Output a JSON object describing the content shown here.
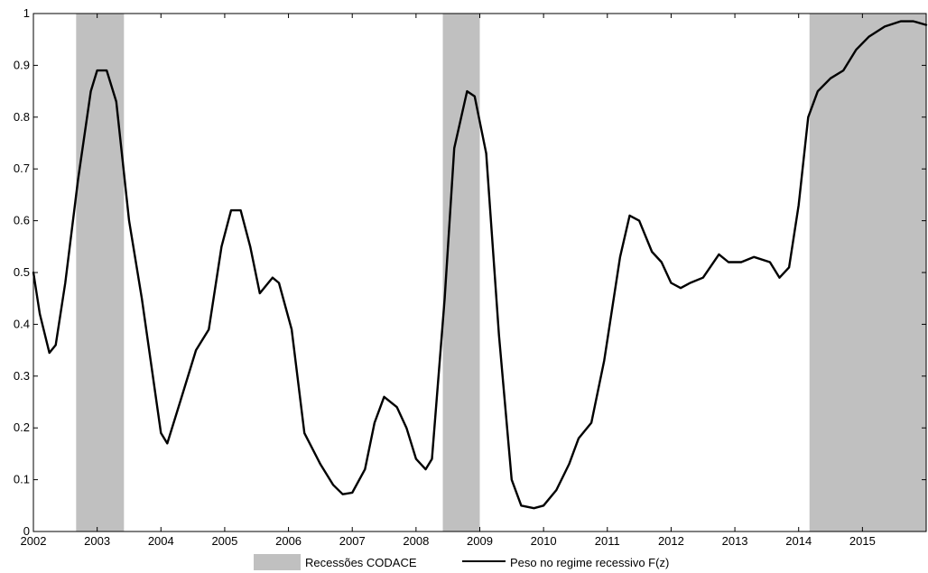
{
  "chart_data": {
    "type": "line",
    "title": "",
    "xlabel": "",
    "ylabel": "",
    "xlim": [
      2002,
      2016
    ],
    "ylim": [
      0,
      1
    ],
    "grid": false,
    "legend_placement": "bottom",
    "x_ticks": [
      "2002",
      "2003",
      "2004",
      "2005",
      "2006",
      "2007",
      "2008",
      "2009",
      "2010",
      "2011",
      "2012",
      "2013",
      "2014",
      "2015"
    ],
    "y_ticks": [
      "0",
      "0.1",
      "0.2",
      "0.3",
      "0.4",
      "0.5",
      "0.6",
      "0.7",
      "0.8",
      "0.9",
      "1"
    ],
    "recession_periods": [
      [
        2002.67,
        2003.42
      ],
      [
        2008.42,
        2009.0
      ],
      [
        2014.17,
        2016.0
      ]
    ],
    "series": [
      {
        "name": "Peso no regime recessivo F(z)",
        "color": "#000000",
        "points": [
          [
            2002.0,
            0.5
          ],
          [
            2002.1,
            0.42
          ],
          [
            2002.25,
            0.345
          ],
          [
            2002.35,
            0.36
          ],
          [
            2002.5,
            0.48
          ],
          [
            2002.7,
            0.68
          ],
          [
            2002.9,
            0.85
          ],
          [
            2003.0,
            0.89
          ],
          [
            2003.15,
            0.89
          ],
          [
            2003.3,
            0.83
          ],
          [
            2003.5,
            0.6
          ],
          [
            2003.7,
            0.45
          ],
          [
            2003.85,
            0.32
          ],
          [
            2004.0,
            0.19
          ],
          [
            2004.1,
            0.17
          ],
          [
            2004.3,
            0.25
          ],
          [
            2004.55,
            0.35
          ],
          [
            2004.75,
            0.39
          ],
          [
            2004.95,
            0.55
          ],
          [
            2005.1,
            0.62
          ],
          [
            2005.25,
            0.62
          ],
          [
            2005.4,
            0.55
          ],
          [
            2005.55,
            0.46
          ],
          [
            2005.75,
            0.49
          ],
          [
            2005.85,
            0.48
          ],
          [
            2006.05,
            0.39
          ],
          [
            2006.25,
            0.19
          ],
          [
            2006.5,
            0.13
          ],
          [
            2006.7,
            0.09
          ],
          [
            2006.85,
            0.072
          ],
          [
            2007.0,
            0.075
          ],
          [
            2007.2,
            0.12
          ],
          [
            2007.35,
            0.21
          ],
          [
            2007.5,
            0.26
          ],
          [
            2007.7,
            0.24
          ],
          [
            2007.85,
            0.2
          ],
          [
            2008.0,
            0.14
          ],
          [
            2008.15,
            0.12
          ],
          [
            2008.25,
            0.14
          ],
          [
            2008.45,
            0.45
          ],
          [
            2008.6,
            0.74
          ],
          [
            2008.8,
            0.85
          ],
          [
            2008.92,
            0.84
          ],
          [
            2009.1,
            0.73
          ],
          [
            2009.3,
            0.38
          ],
          [
            2009.5,
            0.1
          ],
          [
            2009.65,
            0.05
          ],
          [
            2009.85,
            0.045
          ],
          [
            2010.0,
            0.05
          ],
          [
            2010.2,
            0.08
          ],
          [
            2010.4,
            0.13
          ],
          [
            2010.55,
            0.18
          ],
          [
            2010.75,
            0.21
          ],
          [
            2010.95,
            0.33
          ],
          [
            2011.2,
            0.53
          ],
          [
            2011.35,
            0.61
          ],
          [
            2011.5,
            0.6
          ],
          [
            2011.7,
            0.54
          ],
          [
            2011.85,
            0.52
          ],
          [
            2012.0,
            0.48
          ],
          [
            2012.15,
            0.47
          ],
          [
            2012.3,
            0.48
          ],
          [
            2012.5,
            0.49
          ],
          [
            2012.75,
            0.535
          ],
          [
            2012.9,
            0.52
          ],
          [
            2013.1,
            0.52
          ],
          [
            2013.3,
            0.53
          ],
          [
            2013.55,
            0.52
          ],
          [
            2013.7,
            0.49
          ],
          [
            2013.85,
            0.51
          ],
          [
            2014.0,
            0.63
          ],
          [
            2014.15,
            0.8
          ],
          [
            2014.3,
            0.85
          ],
          [
            2014.5,
            0.875
          ],
          [
            2014.7,
            0.89
          ],
          [
            2014.9,
            0.93
          ],
          [
            2015.1,
            0.955
          ],
          [
            2015.35,
            0.975
          ],
          [
            2015.6,
            0.985
          ],
          [
            2015.8,
            0.985
          ],
          [
            2016.0,
            0.978
          ]
        ]
      }
    ],
    "legend": [
      {
        "type": "patch",
        "label": "Recessões CODACE",
        "color": "#c0c0c0"
      },
      {
        "type": "line",
        "label": "Peso no regime recessivo F(z)",
        "color": "#000000"
      }
    ],
    "colors": {
      "recession": "#c0c0c0",
      "line": "#000000",
      "axis": "#000000"
    }
  }
}
